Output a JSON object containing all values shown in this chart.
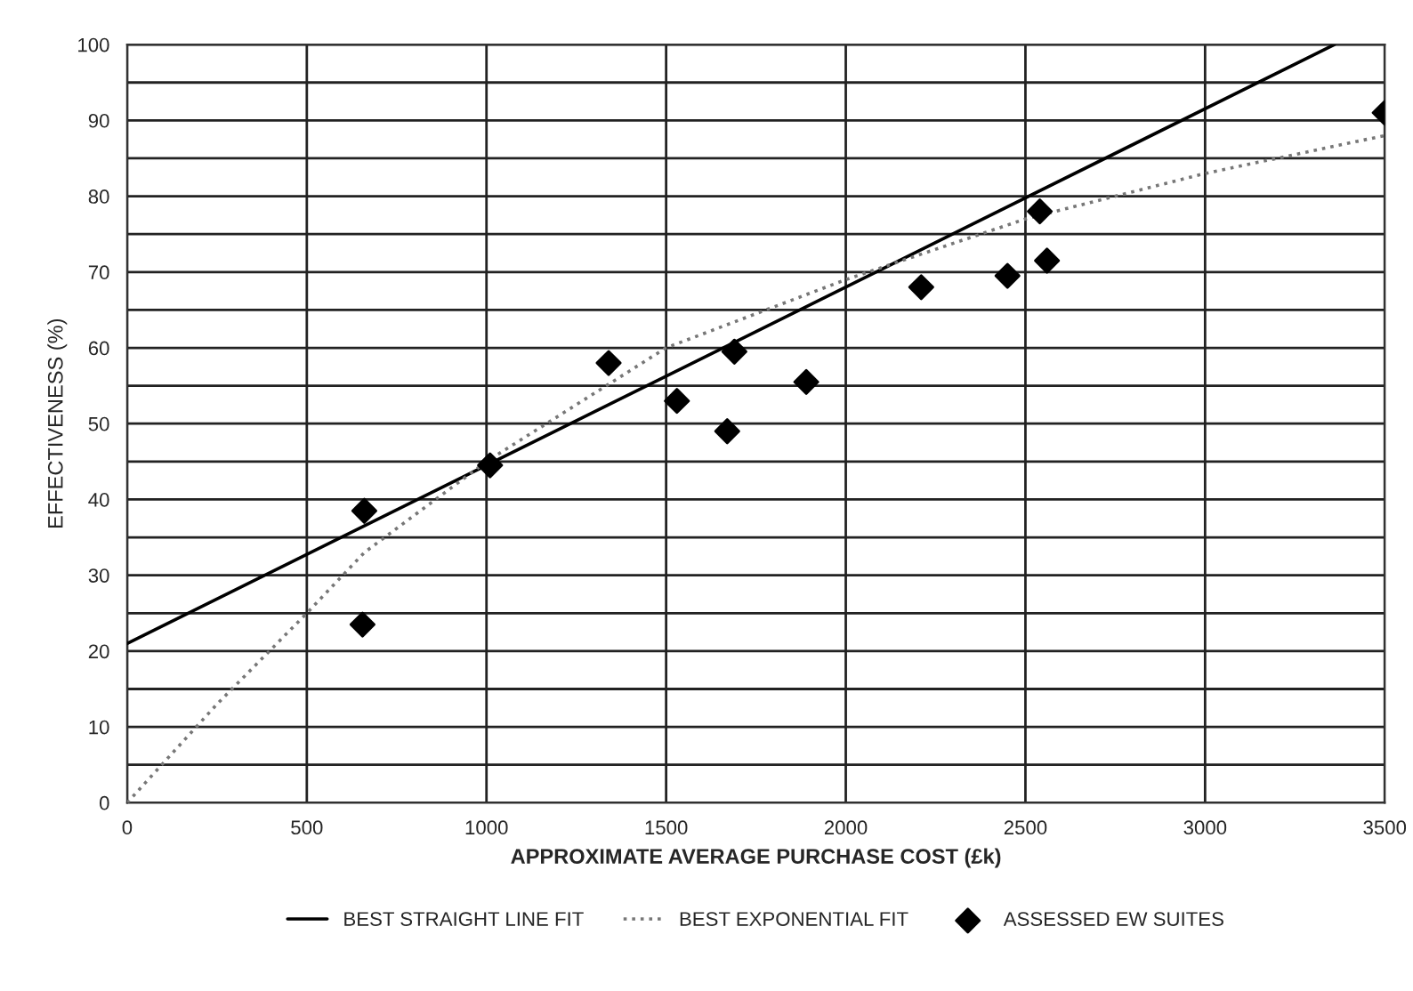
{
  "chart_data": {
    "type": "scatter",
    "xlabel": "APPROXIMATE AVERAGE PURCHASE COST (£k)",
    "ylabel": "EFFECTIVENESS (%)",
    "series": [
      {
        "name": "BEST STRAIGHT LINE FIT",
        "type": "line",
        "color": "#000000",
        "line_style": "solid",
        "marker": "none",
        "x": [
          0,
          3360
        ],
        "values": [
          21,
          100
        ]
      },
      {
        "name": "BEST EXPONENTIAL FIT",
        "type": "line",
        "color": "#777777",
        "line_style": "dotted",
        "marker": "none",
        "x": [
          0,
          250,
          500,
          660,
          1000,
          1500,
          2000,
          2500,
          3000,
          3500
        ],
        "values": [
          0,
          13,
          25,
          33,
          45,
          60,
          69,
          77,
          83,
          88
        ]
      },
      {
        "name": "ASSESSED EW SUITES",
        "color": "#000000",
        "marker": "diamond",
        "x": [
          660,
          655,
          1010,
          1340,
          1530,
          1670,
          1690,
          1890,
          2210,
          2450,
          2540,
          2560,
          3500
        ],
        "values": [
          38.5,
          23.5,
          44.5,
          58,
          53,
          49,
          59.5,
          55.5,
          68,
          69.5,
          78,
          71.5,
          91
        ]
      }
    ],
    "xlim": [
      0,
      3500
    ],
    "xticks": [
      0,
      500,
      1000,
      1500,
      2000,
      2500,
      3000,
      3500
    ],
    "ylim": [
      0,
      100
    ],
    "yticks": [
      0,
      {
        "value": 5,
        "label": null
      },
      10,
      {
        "value": 15,
        "label": null
      },
      20,
      {
        "value": 25,
        "label": null
      },
      30,
      {
        "value": 35,
        "label": null
      },
      40,
      {
        "value": 45,
        "label": null
      },
      50,
      {
        "value": 55,
        "label": null
      },
      60,
      {
        "value": 65,
        "label": null
      },
      70,
      {
        "value": 75,
        "label": null
      },
      80,
      {
        "value": 85,
        "label": null
      },
      90,
      {
        "value": 95,
        "label": null
      },
      100
    ],
    "grid": true,
    "legend": "bottom"
  }
}
